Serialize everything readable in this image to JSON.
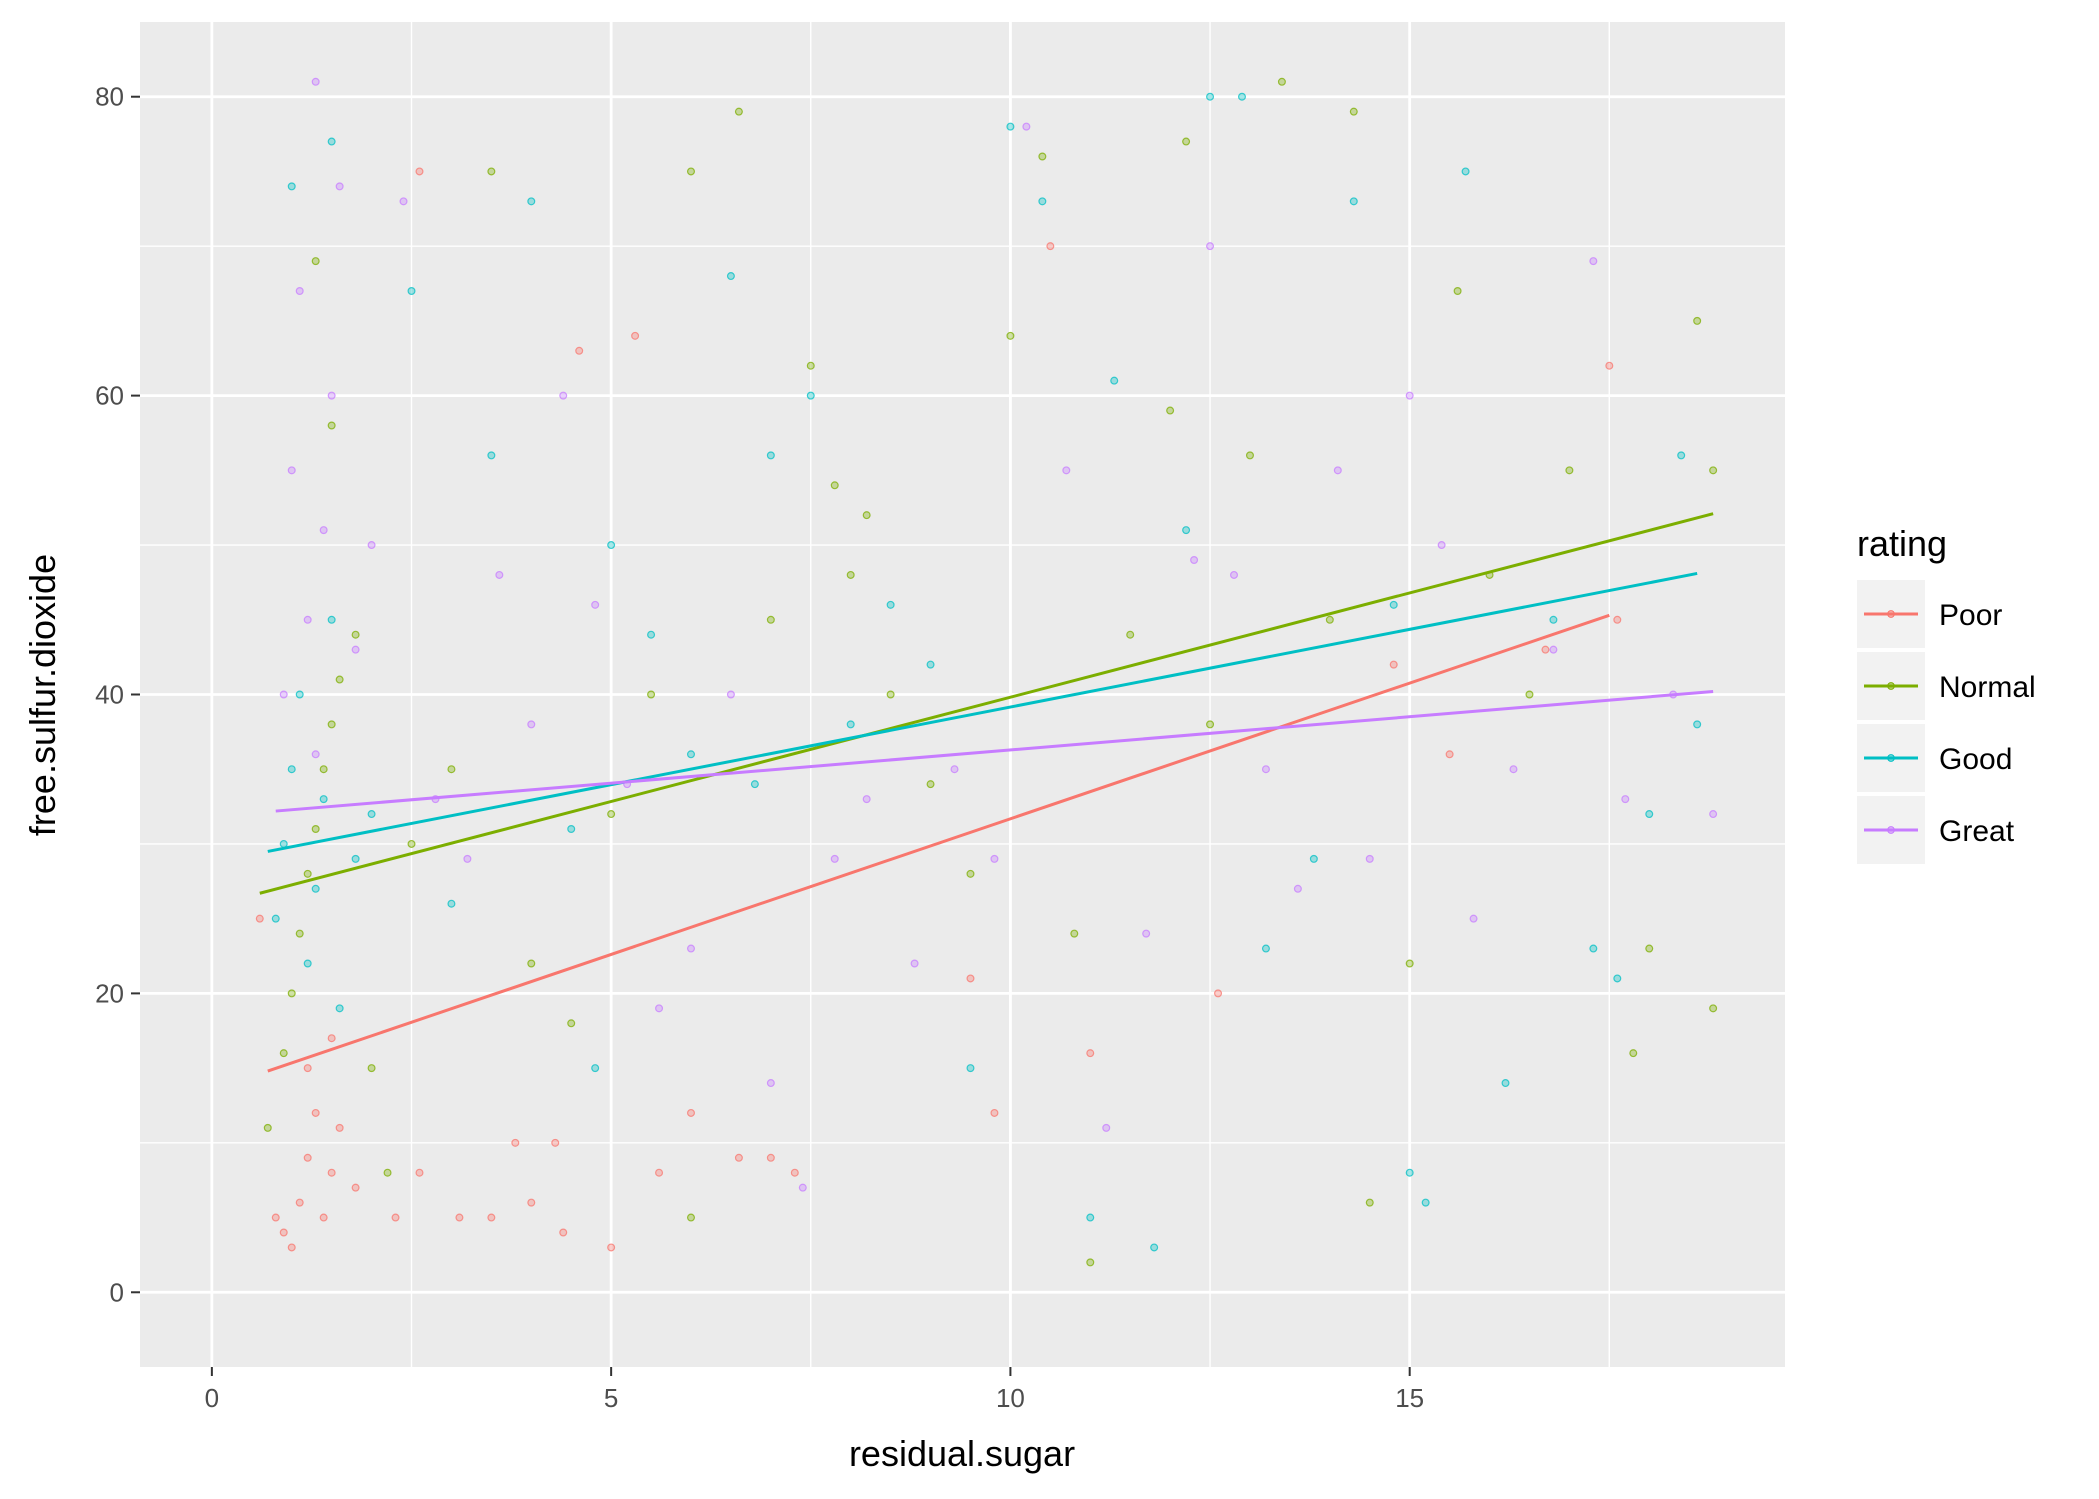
{
  "chart_data": {
    "type": "scatter",
    "title": "",
    "xlabel": "residual.sugar",
    "ylabel": "free.sulfur.dioxide",
    "xlim": [
      -0.9,
      19.7
    ],
    "ylim": [
      -5,
      85
    ],
    "x_ticks": [
      0,
      5,
      10,
      15
    ],
    "y_ticks": [
      0,
      20,
      40,
      60,
      80
    ],
    "grid": true,
    "legend": {
      "title": "rating",
      "placement": "right"
    },
    "series": [
      {
        "name": "Poor",
        "color": "#F8766D",
        "fit_line": {
          "x": [
            0.7,
            17.5
          ],
          "y": [
            14.8,
            45.3
          ]
        },
        "points": [
          [
            0.8,
            5
          ],
          [
            0.9,
            4
          ],
          [
            1.0,
            3
          ],
          [
            1.1,
            6
          ],
          [
            1.2,
            9
          ],
          [
            1.3,
            12
          ],
          [
            1.4,
            5
          ],
          [
            1.5,
            8
          ],
          [
            1.6,
            11
          ],
          [
            1.8,
            7
          ],
          [
            2.3,
            5
          ],
          [
            2.6,
            8
          ],
          [
            3.1,
            5
          ],
          [
            3.5,
            5
          ],
          [
            4.0,
            6
          ],
          [
            4.3,
            10
          ],
          [
            4.4,
            4
          ],
          [
            4.6,
            63
          ],
          [
            5.0,
            3
          ],
          [
            5.3,
            64
          ],
          [
            5.6,
            8
          ],
          [
            6.0,
            12
          ],
          [
            6.6,
            9
          ],
          [
            7.0,
            9
          ],
          [
            7.3,
            8
          ],
          [
            9.5,
            21
          ],
          [
            9.8,
            12
          ],
          [
            10.5,
            70
          ],
          [
            11.0,
            16
          ],
          [
            12.6,
            20
          ],
          [
            14.8,
            42
          ],
          [
            15.5,
            36
          ],
          [
            16.7,
            43
          ],
          [
            17.5,
            62
          ],
          [
            17.6,
            45
          ],
          [
            2.6,
            75
          ],
          [
            0.6,
            25
          ],
          [
            1.2,
            15
          ],
          [
            1.5,
            17
          ],
          [
            3.8,
            10
          ]
        ]
      },
      {
        "name": "Normal",
        "color": "#7CAE00",
        "fit_line": {
          "x": [
            0.6,
            18.8
          ],
          "y": [
            26.7,
            52.1
          ]
        },
        "points": [
          [
            0.7,
            11
          ],
          [
            0.9,
            16
          ],
          [
            1.0,
            20
          ],
          [
            1.1,
            24
          ],
          [
            1.2,
            28
          ],
          [
            1.3,
            31
          ],
          [
            1.4,
            35
          ],
          [
            1.5,
            38
          ],
          [
            1.6,
            41
          ],
          [
            1.8,
            44
          ],
          [
            1.3,
            69
          ],
          [
            1.5,
            58
          ],
          [
            2.0,
            15
          ],
          [
            2.5,
            30
          ],
          [
            3.0,
            35
          ],
          [
            3.5,
            75
          ],
          [
            4.0,
            22
          ],
          [
            4.5,
            18
          ],
          [
            5.0,
            32
          ],
          [
            5.5,
            40
          ],
          [
            6.0,
            75
          ],
          [
            6.6,
            79
          ],
          [
            7.0,
            45
          ],
          [
            7.5,
            62
          ],
          [
            7.8,
            54
          ],
          [
            8.0,
            48
          ],
          [
            8.2,
            52
          ],
          [
            8.5,
            40
          ],
          [
            9.0,
            34
          ],
          [
            9.5,
            28
          ],
          [
            10.0,
            64
          ],
          [
            10.4,
            76
          ],
          [
            10.8,
            24
          ],
          [
            11.0,
            2
          ],
          [
            11.5,
            44
          ],
          [
            12.0,
            59
          ],
          [
            12.2,
            77
          ],
          [
            12.5,
            38
          ],
          [
            13.0,
            56
          ],
          [
            13.4,
            81
          ],
          [
            14.0,
            45
          ],
          [
            14.3,
            79
          ],
          [
            14.5,
            6
          ],
          [
            15.0,
            22
          ],
          [
            15.6,
            67
          ],
          [
            16.0,
            48
          ],
          [
            16.5,
            40
          ],
          [
            17.0,
            55
          ],
          [
            17.8,
            16
          ],
          [
            18.0,
            23
          ],
          [
            18.6,
            65
          ],
          [
            18.8,
            19
          ],
          [
            18.8,
            55
          ],
          [
            2.2,
            8
          ],
          [
            6.0,
            5
          ]
        ]
      },
      {
        "name": "Good",
        "color": "#00BFC4",
        "fit_line": {
          "x": [
            0.7,
            18.6
          ],
          "y": [
            29.5,
            48.1
          ]
        },
        "points": [
          [
            0.8,
            25
          ],
          [
            0.9,
            30
          ],
          [
            1.0,
            35
          ],
          [
            1.1,
            40
          ],
          [
            1.2,
            22
          ],
          [
            1.3,
            27
          ],
          [
            1.4,
            33
          ],
          [
            1.5,
            45
          ],
          [
            1.6,
            19
          ],
          [
            1.8,
            29
          ],
          [
            1.0,
            74
          ],
          [
            1.5,
            77
          ],
          [
            2.0,
            32
          ],
          [
            2.5,
            67
          ],
          [
            3.0,
            26
          ],
          [
            3.5,
            56
          ],
          [
            4.0,
            73
          ],
          [
            4.5,
            31
          ],
          [
            5.0,
            50
          ],
          [
            5.5,
            44
          ],
          [
            6.0,
            36
          ],
          [
            6.5,
            68
          ],
          [
            7.0,
            56
          ],
          [
            7.5,
            60
          ],
          [
            8.0,
            38
          ],
          [
            8.5,
            46
          ],
          [
            9.0,
            42
          ],
          [
            9.5,
            15
          ],
          [
            10.0,
            78
          ],
          [
            10.4,
            73
          ],
          [
            11.0,
            5
          ],
          [
            11.3,
            61
          ],
          [
            11.8,
            3
          ],
          [
            12.2,
            51
          ],
          [
            12.5,
            80
          ],
          [
            12.9,
            80
          ],
          [
            13.2,
            23
          ],
          [
            13.8,
            29
          ],
          [
            14.3,
            73
          ],
          [
            14.8,
            46
          ],
          [
            15.0,
            8
          ],
          [
            15.2,
            6
          ],
          [
            15.7,
            75
          ],
          [
            16.2,
            14
          ],
          [
            16.8,
            45
          ],
          [
            17.3,
            23
          ],
          [
            17.6,
            21
          ],
          [
            18.0,
            32
          ],
          [
            18.4,
            56
          ],
          [
            18.6,
            38
          ],
          [
            6.8,
            34
          ],
          [
            4.8,
            15
          ]
        ]
      },
      {
        "name": "Great",
        "color": "#C77CFF",
        "fit_line": {
          "x": [
            0.8,
            18.8
          ],
          "y": [
            32.2,
            40.2
          ]
        },
        "points": [
          [
            0.9,
            40
          ],
          [
            1.0,
            55
          ],
          [
            1.1,
            67
          ],
          [
            1.2,
            45
          ],
          [
            1.3,
            36
          ],
          [
            1.4,
            51
          ],
          [
            1.5,
            60
          ],
          [
            1.6,
            74
          ],
          [
            1.8,
            43
          ],
          [
            1.3,
            81
          ],
          [
            2.0,
            50
          ],
          [
            2.4,
            73
          ],
          [
            2.8,
            33
          ],
          [
            3.2,
            29
          ],
          [
            3.6,
            48
          ],
          [
            4.0,
            38
          ],
          [
            4.4,
            60
          ],
          [
            4.8,
            46
          ],
          [
            5.2,
            34
          ],
          [
            5.6,
            19
          ],
          [
            6.0,
            23
          ],
          [
            6.5,
            40
          ],
          [
            7.0,
            14
          ],
          [
            7.4,
            7
          ],
          [
            7.8,
            29
          ],
          [
            8.2,
            33
          ],
          [
            8.8,
            22
          ],
          [
            9.3,
            35
          ],
          [
            9.8,
            29
          ],
          [
            10.2,
            78
          ],
          [
            10.7,
            55
          ],
          [
            11.2,
            11
          ],
          [
            11.7,
            24
          ],
          [
            12.3,
            49
          ],
          [
            12.5,
            70
          ],
          [
            12.8,
            48
          ],
          [
            13.2,
            35
          ],
          [
            13.6,
            27
          ],
          [
            14.1,
            55
          ],
          [
            14.5,
            29
          ],
          [
            15.0,
            60
          ],
          [
            15.4,
            50
          ],
          [
            15.8,
            25
          ],
          [
            16.3,
            35
          ],
          [
            16.8,
            43
          ],
          [
            17.3,
            69
          ],
          [
            17.7,
            33
          ],
          [
            18.3,
            40
          ],
          [
            18.8,
            32
          ]
        ]
      }
    ]
  }
}
